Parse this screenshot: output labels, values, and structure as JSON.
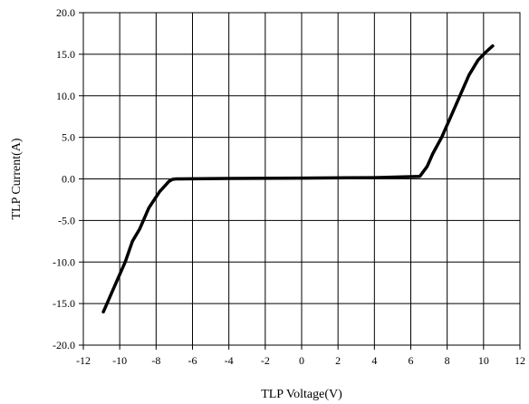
{
  "chart_data": {
    "type": "line",
    "title": "",
    "xlabel": "TLP Voltage(V)",
    "ylabel": "TLP Current(A)",
    "xlim": [
      -12,
      12
    ],
    "ylim": [
      -20,
      20
    ],
    "x_ticks": [
      "-12",
      "-10",
      "-8",
      "-6",
      "-4",
      "-2",
      "0",
      "2",
      "4",
      "6",
      "8",
      "10",
      "12"
    ],
    "y_ticks": [
      "20.0",
      "15.0",
      "10.0",
      "5.0",
      "0.0",
      "-5.0",
      "-10.0",
      "-15.0",
      "-20.0"
    ],
    "grid": true,
    "legend": "none",
    "series": [
      {
        "color": "#000000",
        "x": [
          -10.9,
          -10.3,
          -9.7,
          -9.3,
          -8.9,
          -8.4,
          -8.1,
          -7.8,
          -7.5,
          -7.3,
          -7.1,
          -6.9,
          -6.7,
          -4.0,
          0.0,
          4.0,
          6.5,
          6.9,
          7.2,
          7.7,
          8.2,
          8.7,
          9.2,
          9.7,
          10.1,
          10.5
        ],
        "y": [
          -16.0,
          -13.0,
          -10.0,
          -7.5,
          -6.0,
          -3.5,
          -2.5,
          -1.5,
          -0.8,
          -0.3,
          -0.05,
          0.0,
          0.0,
          0.05,
          0.1,
          0.15,
          0.3,
          1.5,
          3.0,
          5.0,
          7.5,
          10.0,
          12.5,
          14.3,
          15.2,
          16.0
        ]
      }
    ]
  }
}
